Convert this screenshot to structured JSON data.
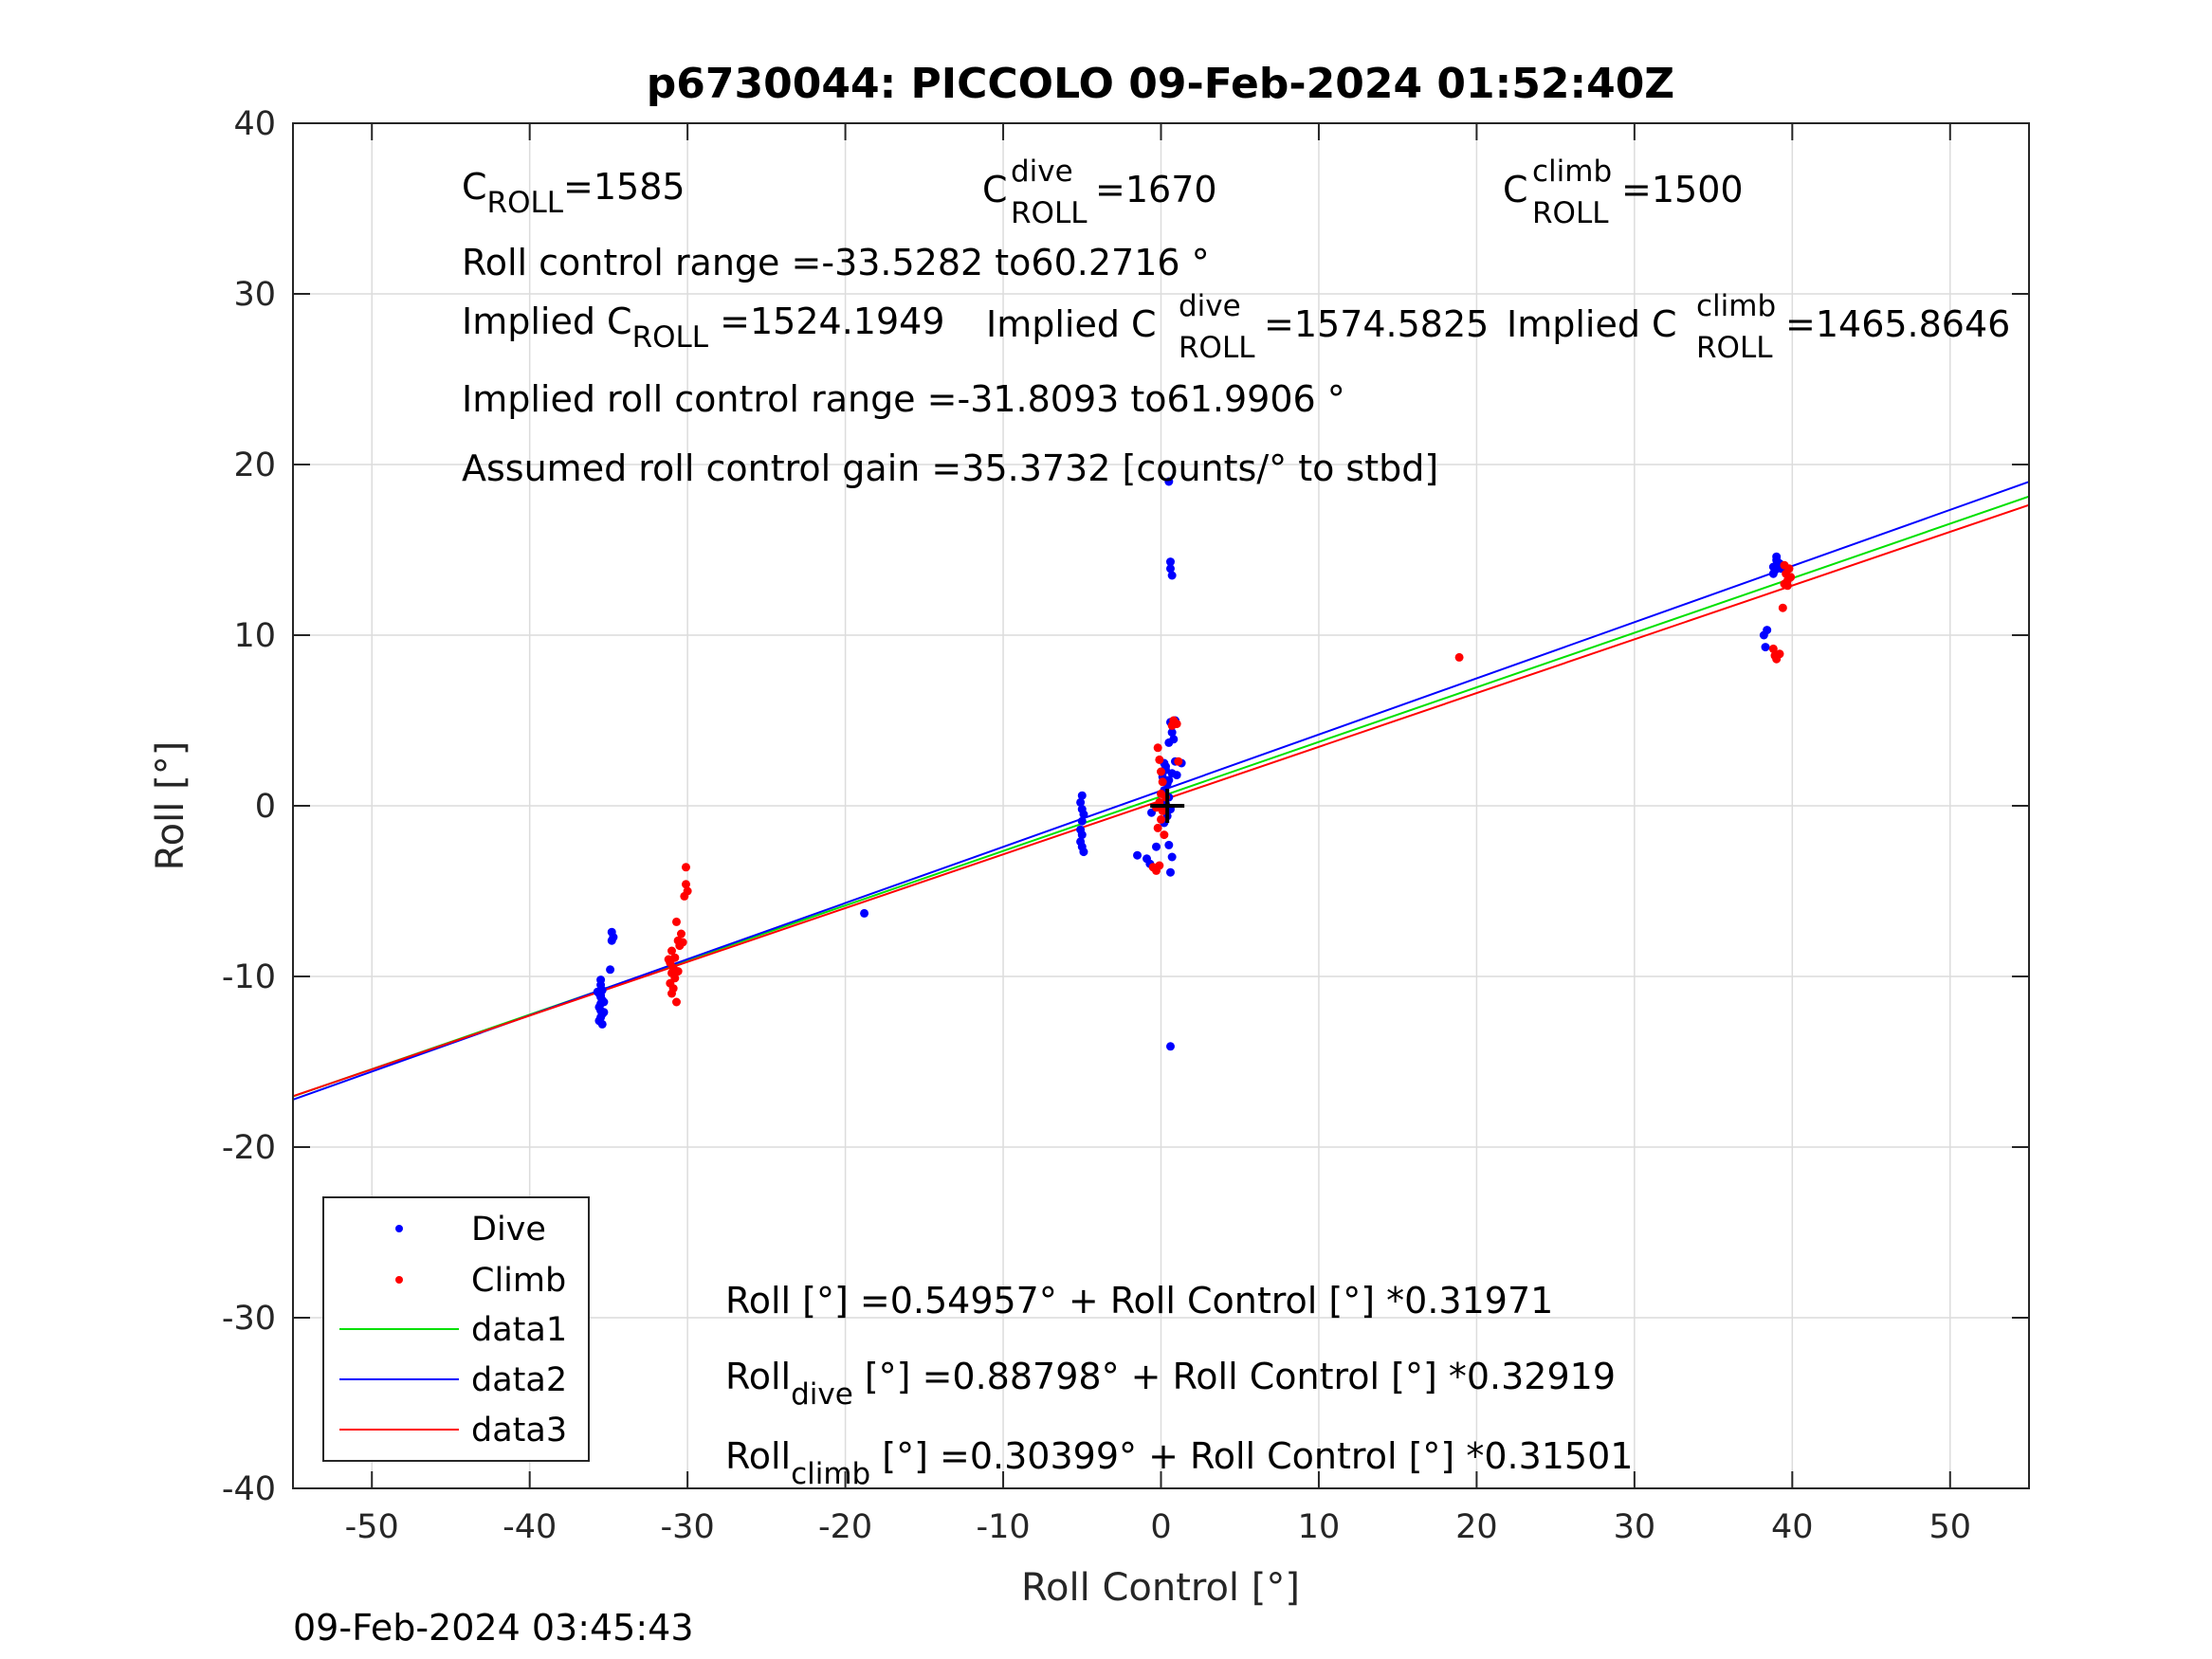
{
  "chart_data": {
    "type": "scatter",
    "title": "p6730044: PICCOLO 09-Feb-2024 01:52:40Z",
    "xlabel": "Roll Control [°]",
    "ylabel": "Roll [°]",
    "xlim": [
      -55,
      55
    ],
    "ylim": [
      -40,
      40
    ],
    "xticks": [
      "-50",
      "-40",
      "-30",
      "-20",
      "-10",
      "0",
      "10",
      "20",
      "30",
      "40",
      "50"
    ],
    "yticks": [
      "40",
      "30",
      "20",
      "10",
      "0",
      "-10",
      "-20",
      "-30",
      "-40"
    ],
    "grid": true,
    "legend_position": "bottom-left",
    "series": [
      {
        "name": "Dive",
        "kind": "points",
        "color": "#0000ff",
        "points": [
          [
            -35.5,
            -10.2
          ],
          [
            -35.5,
            -10.5
          ],
          [
            -35.4,
            -10.8
          ],
          [
            -35.6,
            -11.0
          ],
          [
            -35.5,
            -11.2
          ],
          [
            -35.4,
            -11.4
          ],
          [
            -35.5,
            -11.6
          ],
          [
            -35.6,
            -11.8
          ],
          [
            -35.5,
            -12.0
          ],
          [
            -35.4,
            -12.2
          ],
          [
            -35.5,
            -12.4
          ],
          [
            -35.6,
            -12.6
          ],
          [
            -35.4,
            -12.8
          ],
          [
            -35.5,
            -11.1
          ],
          [
            -35.3,
            -11.5
          ],
          [
            -35.7,
            -10.9
          ],
          [
            -35.3,
            -12.1
          ],
          [
            -34.8,
            -7.4
          ],
          [
            -34.7,
            -7.7
          ],
          [
            -34.9,
            -9.6
          ],
          [
            -34.8,
            -7.9
          ],
          [
            -18.8,
            -6.3
          ],
          [
            -5.0,
            0.6
          ],
          [
            -5.1,
            0.2
          ],
          [
            -5.0,
            -0.2
          ],
          [
            -4.9,
            -0.5
          ],
          [
            -5.0,
            -0.9
          ],
          [
            -5.1,
            -1.4
          ],
          [
            -5.0,
            -1.7
          ],
          [
            -5.0,
            -2.4
          ],
          [
            -4.9,
            -2.7
          ],
          [
            -5.1,
            -2.1
          ],
          [
            -1.5,
            -2.9
          ],
          [
            -0.9,
            -3.1
          ],
          [
            -0.7,
            -3.4
          ],
          [
            -0.3,
            -2.4
          ],
          [
            -0.6,
            -0.4
          ],
          [
            0.2,
            2.5
          ],
          [
            0.3,
            2.1
          ],
          [
            0.1,
            1.7
          ],
          [
            0.4,
            1.3
          ],
          [
            0.2,
            0.9
          ],
          [
            0.5,
            0.5
          ],
          [
            0.3,
            0.1
          ],
          [
            0.6,
            -0.2
          ],
          [
            0.4,
            -0.6
          ],
          [
            0.2,
            -1.0
          ],
          [
            0.5,
            1.5
          ],
          [
            0.7,
            1.9
          ],
          [
            0.3,
            2.3
          ],
          [
            0.6,
            4.9
          ],
          [
            0.7,
            4.3
          ],
          [
            0.5,
            3.7
          ],
          [
            0.8,
            3.9
          ],
          [
            0.9,
            2.6
          ],
          [
            1.0,
            1.8
          ],
          [
            1.3,
            2.5
          ],
          [
            0.9,
            5.0
          ],
          [
            0.6,
            14.3
          ],
          [
            0.6,
            13.9
          ],
          [
            0.7,
            13.5
          ],
          [
            0.5,
            19.0
          ],
          [
            0.5,
            -2.3
          ],
          [
            0.7,
            -3.0
          ],
          [
            0.6,
            -3.9
          ],
          [
            0.6,
            -14.1
          ],
          [
            38.2,
            10.0
          ],
          [
            38.4,
            10.3
          ],
          [
            38.3,
            9.3
          ],
          [
            38.8,
            14.0
          ],
          [
            39.0,
            14.4
          ],
          [
            38.9,
            13.8
          ],
          [
            39.2,
            14.2
          ],
          [
            39.0,
            14.6
          ],
          [
            38.8,
            13.6
          ],
          [
            39.3,
            13.9
          ]
        ]
      },
      {
        "name": "Climb",
        "kind": "points",
        "color": "#ff0000",
        "points": [
          [
            -31.0,
            -8.5
          ],
          [
            -30.8,
            -8.9
          ],
          [
            -31.1,
            -9.2
          ],
          [
            -30.9,
            -9.5
          ],
          [
            -31.0,
            -9.8
          ],
          [
            -30.8,
            -10.1
          ],
          [
            -31.1,
            -10.4
          ],
          [
            -30.9,
            -10.7
          ],
          [
            -31.0,
            -11.0
          ],
          [
            -30.7,
            -11.5
          ],
          [
            -31.2,
            -9.0
          ],
          [
            -30.6,
            -9.7
          ],
          [
            -30.5,
            -8.2
          ],
          [
            -30.6,
            -7.9
          ],
          [
            -30.4,
            -7.5
          ],
          [
            -30.7,
            -6.8
          ],
          [
            -30.3,
            -8.0
          ],
          [
            -30.1,
            -3.6
          ],
          [
            -30.1,
            -4.6
          ],
          [
            -30.0,
            -5.0
          ],
          [
            -30.2,
            -5.3
          ],
          [
            -0.2,
            3.4
          ],
          [
            -0.1,
            2.7
          ],
          [
            0.0,
            2.0
          ],
          [
            0.1,
            1.4
          ],
          [
            0.0,
            0.7
          ],
          [
            -0.1,
            0.2
          ],
          [
            0.1,
            -0.3
          ],
          [
            0.0,
            -0.8
          ],
          [
            -0.2,
            -1.3
          ],
          [
            0.2,
            -1.7
          ],
          [
            0.3,
            0.5
          ],
          [
            -0.3,
            -0.1
          ],
          [
            -0.5,
            -3.6
          ],
          [
            -0.3,
            -3.8
          ],
          [
            -0.1,
            -3.5
          ],
          [
            0.7,
            4.7
          ],
          [
            0.8,
            5.0
          ],
          [
            1.0,
            4.8
          ],
          [
            1.1,
            2.6
          ],
          [
            18.9,
            8.7
          ],
          [
            38.8,
            9.2
          ],
          [
            38.9,
            8.8
          ],
          [
            39.0,
            8.6
          ],
          [
            39.2,
            8.9
          ],
          [
            39.4,
            11.6
          ],
          [
            39.5,
            13.0
          ],
          [
            39.7,
            13.2
          ],
          [
            39.6,
            13.6
          ],
          [
            39.8,
            13.9
          ],
          [
            39.5,
            14.1
          ],
          [
            39.9,
            13.4
          ],
          [
            39.7,
            12.9
          ]
        ]
      },
      {
        "name": "data1",
        "kind": "line",
        "color": "#00e000",
        "x": [
          -55,
          55
        ],
        "y": [
          -17.03,
          18.13
        ]
      },
      {
        "name": "data2",
        "kind": "line",
        "color": "#0000ff",
        "x": [
          -55,
          55
        ],
        "y": [
          -17.22,
          18.99
        ]
      },
      {
        "name": "data3",
        "kind": "line",
        "color": "#ff0000",
        "x": [
          -55,
          55
        ],
        "y": [
          -17.02,
          17.63
        ]
      }
    ],
    "black_marker": [
      0.4,
      0.0
    ]
  },
  "annotations": {
    "c_roll": {
      "main": "C",
      "sub": "ROLL",
      "value": "=1585"
    },
    "c_roll_dive": {
      "main": "C",
      "sup": "dive",
      "sub": "ROLL",
      "value": " =1670"
    },
    "c_roll_climb": {
      "main": "C",
      "sup": "climb",
      "sub": "ROLL",
      "value": " =1500"
    },
    "roll_range": "Roll control range =-33.5282 to60.2716 °",
    "implied_c_roll": {
      "main": "Implied C",
      "sub": "ROLL",
      "value": " =1524.1949"
    },
    "implied_c_roll_dive": {
      "main": "Implied C",
      "sup": "dive",
      "sub": "ROLL",
      "value": " =1574.5825"
    },
    "implied_c_roll_climb": {
      "main": "Implied C",
      "sup": "climb",
      "sub": "ROLL",
      "value": " =1465.8646"
    },
    "implied_range": "Implied roll control range =-31.8093 to61.9906 °",
    "gain": "Assumed roll control gain =35.3732 [counts/° to stbd]",
    "fit_all": "Roll [°] =0.54957° + Roll Control [°] *0.31971",
    "fit_dive": {
      "main": "Roll",
      "sub": "dive",
      "rest": " [°] =0.88798° + Roll Control [°] *0.32919"
    },
    "fit_climb": {
      "main": "Roll",
      "sub": "climb",
      "rest": " [°] =0.30399° + Roll Control [°] *0.31501"
    }
  },
  "timestamp": "09-Feb-2024 03:45:43"
}
